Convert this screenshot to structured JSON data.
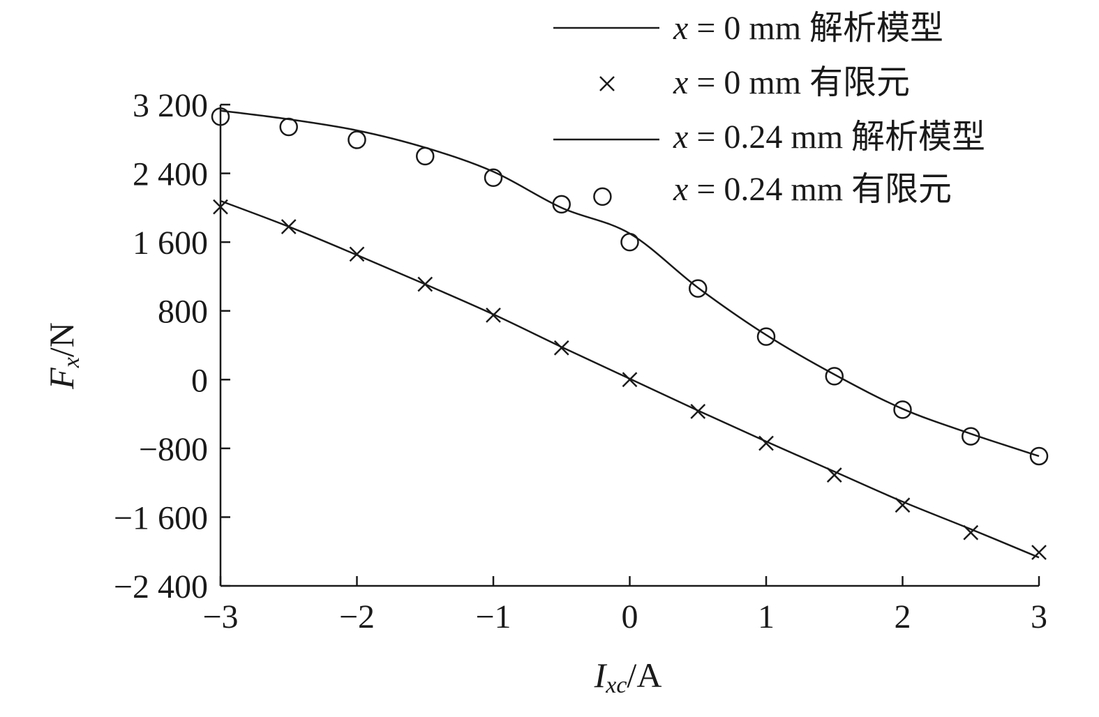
{
  "chart_data": {
    "type": "line",
    "xlabel": "I_xc/A",
    "xlabel_main": "I",
    "xlabel_sub": "xc",
    "xlabel_unit": "/A",
    "ylabel": "F_x/N",
    "ylabel_main": "F",
    "ylabel_sub": "x",
    "ylabel_unit": "/N",
    "xlim": [
      -3,
      3
    ],
    "ylim": [
      -2400,
      3200
    ],
    "x_ticks": [
      -3,
      -2,
      -1,
      0,
      1,
      2,
      3
    ],
    "x_tick_labels": [
      "−3",
      "−2",
      "−1",
      "0",
      "1",
      "2",
      "3"
    ],
    "y_ticks": [
      3200,
      2400,
      1600,
      800,
      0,
      -800,
      -1600,
      -2400
    ],
    "y_tick_labels": [
      "3 200",
      "2 400",
      "1 600",
      "800",
      "0",
      "−800",
      "−1 600",
      "−2 400"
    ],
    "grid": false,
    "legend_position": "top-right",
    "x": [
      -3,
      -2.5,
      -2,
      -1.5,
      -1,
      -0.5,
      0,
      0.5,
      1,
      1.5,
      2,
      2.5,
      3
    ],
    "series": [
      {
        "name": "x = 0 mm 解析模型",
        "legend_var": "x",
        "legend_rest": " = 0 mm 解析模型",
        "style": "line",
        "values": [
          2080,
          1780,
          1450,
          1110,
          760,
          380,
          10,
          -360,
          -720,
          -1070,
          -1420,
          -1740,
          -2070
        ]
      },
      {
        "name": "x = 0 mm 有限元",
        "legend_var": "x",
        "legend_rest": " = 0 mm 有限元",
        "style": "x-marker",
        "values": [
          2010,
          1780,
          1460,
          1110,
          750,
          370,
          0,
          -370,
          -740,
          -1110,
          -1460,
          -1780,
          -2010
        ]
      },
      {
        "name": "x = 0.24 mm 解析模型",
        "legend_var": "x",
        "legend_rest": " = 0.24 mm 解析模型",
        "style": "line",
        "values": [
          3130,
          3030,
          2900,
          2700,
          2420,
          2000,
          1700,
          1070,
          520,
          60,
          -340,
          -630,
          -890
        ]
      },
      {
        "name": "x = 0.24 mm 有限元",
        "legend_var": "x",
        "legend_rest": " = 0.24 mm 有限元",
        "style": "circle-marker",
        "values": [
          3060,
          2940,
          2790,
          2600,
          2350,
          2040,
          1600,
          1060,
          500,
          40,
          -350,
          -660,
          -890
        ]
      }
    ],
    "extra_points": [
      {
        "x": -0.2,
        "y": 2130,
        "style": "circle-marker"
      }
    ]
  }
}
